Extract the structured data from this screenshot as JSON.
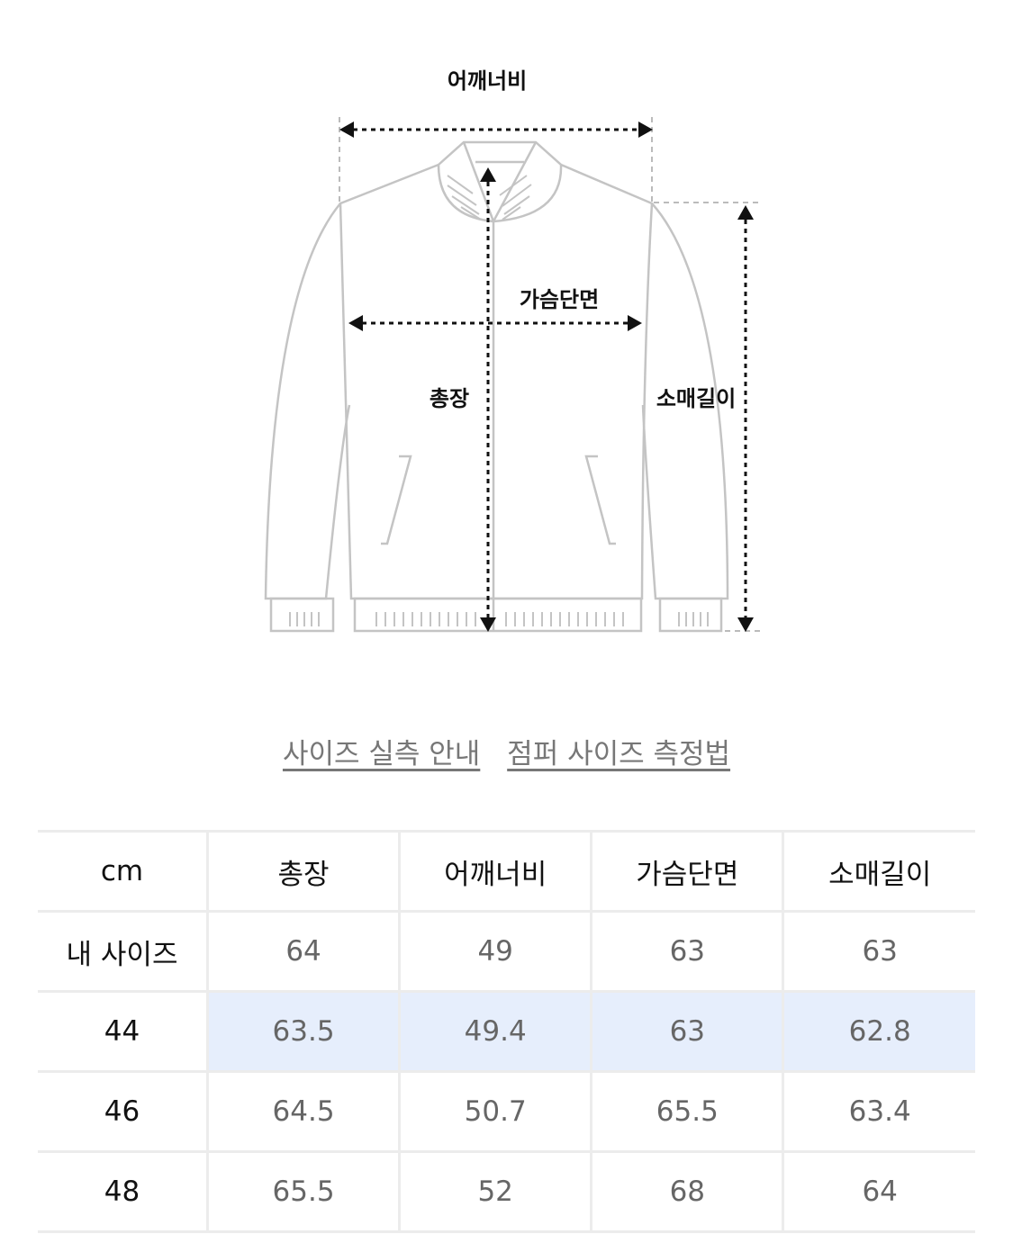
{
  "diagram": {
    "labels": {
      "shoulder": "어깨너비",
      "chest": "가슴단면",
      "length": "총장",
      "sleeve": "소매길이"
    }
  },
  "links": [
    {
      "label": "사이즈 실측 안내"
    },
    {
      "label": "점퍼 사이즈 측정법"
    }
  ],
  "table": {
    "headers": [
      "cm",
      "총장",
      "어깨너비",
      "가슴단면",
      "소매길이"
    ],
    "rows": [
      {
        "label": "내 사이즈",
        "values": [
          "64",
          "49",
          "63",
          "63"
        ]
      },
      {
        "label": "44",
        "values": [
          "63.5",
          "49.4",
          "63",
          "62.8"
        ],
        "highlighted": true
      },
      {
        "label": "46",
        "values": [
          "64.5",
          "50.7",
          "65.5",
          "63.4"
        ]
      },
      {
        "label": "48",
        "values": [
          "65.5",
          "52",
          "68",
          "64"
        ]
      }
    ],
    "highlight_color": "#e6eefc"
  }
}
